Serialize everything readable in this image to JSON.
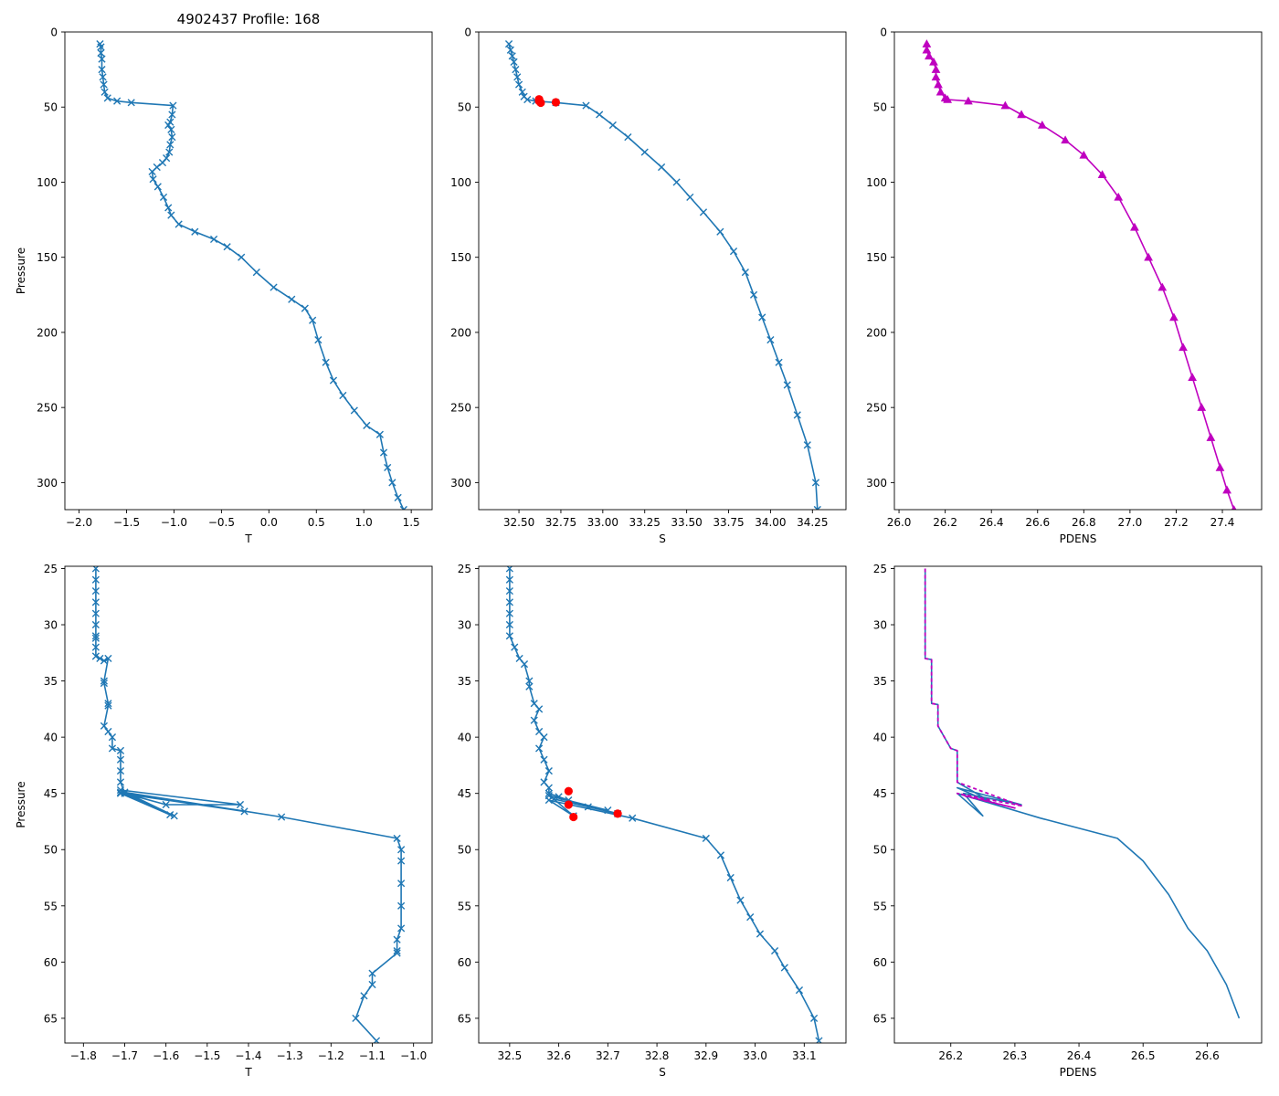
{
  "figure": {
    "title": "4902437 Profile: 168"
  },
  "colors": {
    "profile": "#1f77b4",
    "density": "#bf00bf",
    "flagged": "#ff0000"
  },
  "chart_data": [
    {
      "id": "top-t",
      "type": "line",
      "marker": "x",
      "title": "4902437 Profile: 168",
      "xlabel": "T",
      "ylabel": "Pressure",
      "xlim": [
        -2.15,
        1.72
      ],
      "ylim": [
        318,
        0
      ],
      "xticks": [
        -2.0,
        -1.5,
        -1.0,
        -0.5,
        0.0,
        0.5,
        1.0,
        1.5
      ],
      "xtick_labels": [
        "−2.0",
        "−1.5",
        "−1.0",
        "−0.5",
        "0.0",
        "0.5",
        "1.0",
        "1.5"
      ],
      "yticks": [
        0,
        50,
        100,
        150,
        200,
        250,
        300
      ],
      "ytick_labels": [
        "0",
        "50",
        "100",
        "150",
        "200",
        "250",
        "300"
      ],
      "series": [
        {
          "name": "T",
          "color": "profile",
          "x": [
            -1.78,
            -1.77,
            -1.77,
            -1.76,
            -1.76,
            -1.75,
            -1.74,
            -1.73,
            -1.7,
            -1.6,
            -1.45,
            -1.01,
            -1.02,
            -1.04,
            -1.06,
            -1.03,
            -1.02,
            -1.04,
            -1.05,
            -1.08,
            -1.12,
            -1.18,
            -1.23,
            -1.22,
            -1.17,
            -1.11,
            -1.06,
            -1.03,
            -0.95,
            -0.78,
            -0.58,
            -0.44,
            -0.29,
            -0.13,
            0.05,
            0.24,
            0.38,
            0.46,
            0.52,
            0.6,
            0.68,
            0.78,
            0.9,
            1.03,
            1.17,
            1.21,
            1.25,
            1.3,
            1.36,
            1.42
          ],
          "y": [
            8,
            10,
            14,
            18,
            25,
            30,
            35,
            40,
            44,
            46,
            47,
            49,
            55,
            60,
            62,
            65,
            70,
            75,
            80,
            84,
            87,
            90,
            93,
            98,
            103,
            110,
            117,
            122,
            128,
            133,
            138,
            143,
            150,
            160,
            170,
            178,
            184,
            192,
            205,
            220,
            232,
            242,
            252,
            262,
            268,
            280,
            290,
            300,
            310,
            318
          ]
        }
      ]
    },
    {
      "id": "top-s",
      "type": "line",
      "marker": "x",
      "xlabel": "S",
      "ylabel": "",
      "xlim": [
        32.26,
        34.45
      ],
      "ylim": [
        318,
        0
      ],
      "xticks": [
        32.5,
        32.75,
        33.0,
        33.25,
        33.5,
        33.75,
        34.0,
        34.25
      ],
      "xtick_labels": [
        "32.50",
        "32.75",
        "33.00",
        "33.25",
        "33.50",
        "33.75",
        "34.00",
        "34.25"
      ],
      "yticks": [
        0,
        50,
        100,
        150,
        200,
        250,
        300
      ],
      "ytick_labels": [
        "0",
        "50",
        "100",
        "150",
        "200",
        "250",
        "300"
      ],
      "series": [
        {
          "name": "S",
          "color": "profile",
          "x": [
            32.44,
            32.45,
            32.46,
            32.47,
            32.48,
            32.49,
            32.5,
            32.52,
            32.53,
            32.55,
            32.6,
            32.72,
            32.9,
            32.98,
            33.06,
            33.15,
            33.25,
            33.35,
            33.44,
            33.52,
            33.6,
            33.7,
            33.78,
            33.85,
            33.9,
            33.95,
            34.0,
            34.05,
            34.1,
            34.16,
            34.22,
            34.27,
            34.28
          ],
          "y": [
            8,
            12,
            16,
            20,
            25,
            30,
            35,
            40,
            43,
            45,
            46,
            47,
            49,
            55,
            62,
            70,
            80,
            90,
            100,
            110,
            120,
            133,
            146,
            160,
            175,
            190,
            205,
            220,
            235,
            255,
            275,
            300,
            318
          ]
        },
        {
          "name": "flagged",
          "color": "flagged",
          "marker": "o",
          "x": [
            32.62,
            32.62,
            32.63,
            32.72
          ],
          "y": [
            44.8,
            46.0,
            47.1,
            46.8
          ]
        }
      ]
    },
    {
      "id": "top-pdens",
      "type": "line",
      "marker": "^",
      "xlabel": "PDENS",
      "ylabel": "",
      "xlim": [
        25.98,
        27.57
      ],
      "ylim": [
        318,
        0
      ],
      "xticks": [
        26.0,
        26.2,
        26.4,
        26.6,
        26.8,
        27.0,
        27.2,
        27.4
      ],
      "xtick_labels": [
        "26.0",
        "26.2",
        "26.4",
        "26.6",
        "26.8",
        "27.0",
        "27.2",
        "27.4"
      ],
      "yticks": [
        0,
        50,
        100,
        150,
        200,
        250,
        300
      ],
      "ytick_labels": [
        "0",
        "50",
        "100",
        "150",
        "200",
        "250",
        "300"
      ],
      "series": [
        {
          "name": "PDENS",
          "color": "density",
          "x": [
            26.12,
            26.12,
            26.13,
            26.15,
            26.16,
            26.16,
            26.17,
            26.18,
            26.2,
            26.21,
            26.3,
            26.46,
            26.53,
            26.62,
            26.72,
            26.8,
            26.88,
            26.95,
            27.02,
            27.08,
            27.14,
            27.19,
            27.23,
            27.27,
            27.31,
            27.35,
            27.39,
            27.42,
            27.45
          ],
          "y": [
            8,
            12,
            16,
            20,
            25,
            30,
            35,
            40,
            44,
            45,
            46,
            49,
            55,
            62,
            72,
            82,
            95,
            110,
            130,
            150,
            170,
            190,
            210,
            230,
            250,
            270,
            290,
            305,
            318
          ]
        }
      ]
    },
    {
      "id": "bottom-t",
      "type": "line",
      "marker": "x",
      "xlabel": "T",
      "ylabel": "Pressure",
      "xlim": [
        -1.845,
        -0.955
      ],
      "ylim": [
        67.2,
        24.8
      ],
      "xticks": [
        -1.8,
        -1.7,
        -1.6,
        -1.5,
        -1.4,
        -1.3,
        -1.2,
        -1.1,
        -1.0
      ],
      "xtick_labels": [
        "−1.8",
        "−1.7",
        "−1.6",
        "−1.5",
        "−1.4",
        "−1.3",
        "−1.2",
        "−1.1",
        "−1.0"
      ],
      "yticks": [
        25,
        30,
        35,
        40,
        45,
        50,
        55,
        60,
        65
      ],
      "ytick_labels": [
        "25",
        "30",
        "35",
        "40",
        "45",
        "50",
        "55",
        "60",
        "65"
      ],
      "series": [
        {
          "name": "T",
          "color": "profile",
          "x": [
            -1.77,
            -1.77,
            -1.77,
            -1.77,
            -1.77,
            -1.77,
            -1.77,
            -1.77,
            -1.77,
            -1.77,
            -1.76,
            -1.75,
            -1.74,
            -1.75,
            -1.75,
            -1.74,
            -1.74,
            -1.75,
            -1.74,
            -1.73,
            -1.73,
            -1.71,
            -1.71,
            -1.71,
            -1.71,
            -1.7,
            -1.6,
            -1.42,
            -1.71,
            -1.58,
            -1.71,
            -1.41,
            -1.71,
            -1.59,
            -1.7,
            -1.32,
            -1.04,
            -1.03,
            -1.03,
            -1.03,
            -1.03,
            -1.03,
            -1.04,
            -1.04,
            -1.04,
            -1.1,
            -1.1,
            -1.12,
            -1.14,
            -1.09
          ],
          "y": [
            25,
            26,
            27,
            28,
            29,
            30,
            31,
            31.2,
            32,
            32.8,
            33,
            33.2,
            33,
            35,
            35.2,
            37,
            37.2,
            39,
            39.5,
            40,
            41,
            41.2,
            42,
            43,
            44,
            45,
            46,
            46,
            44.7,
            47,
            44.9,
            46.6,
            45,
            46.9,
            44.9,
            47.1,
            49,
            50,
            51,
            53,
            55,
            57,
            58,
            59,
            59.2,
            61,
            62,
            63,
            65,
            67
          ]
        }
      ]
    },
    {
      "id": "bottom-s",
      "type": "line",
      "marker": "x",
      "xlabel": "S",
      "ylabel": "",
      "xlim": [
        32.437,
        33.185
      ],
      "ylim": [
        67.2,
        24.8
      ],
      "xticks": [
        32.5,
        32.6,
        32.7,
        32.8,
        32.9,
        33.0,
        33.1
      ],
      "xtick_labels": [
        "32.5",
        "32.6",
        "32.7",
        "32.8",
        "32.9",
        "33.0",
        "33.1"
      ],
      "yticks": [
        25,
        30,
        35,
        40,
        45,
        50,
        55,
        60,
        65
      ],
      "ytick_labels": [
        "25",
        "30",
        "35",
        "40",
        "45",
        "50",
        "55",
        "60",
        "65"
      ],
      "series": [
        {
          "name": "S",
          "color": "profile",
          "x": [
            32.5,
            32.5,
            32.5,
            32.5,
            32.5,
            32.5,
            32.5,
            32.51,
            32.52,
            32.53,
            32.54,
            32.54,
            32.55,
            32.56,
            32.55,
            32.56,
            32.57,
            32.56,
            32.57,
            32.58,
            32.57,
            32.58,
            32.58,
            32.6,
            32.62,
            32.66,
            32.7,
            32.58,
            32.72,
            32.59,
            32.63,
            32.58,
            32.75,
            32.9,
            32.93,
            32.95,
            32.97,
            32.99,
            33.01,
            33.04,
            33.06,
            33.09,
            33.12,
            33.13
          ],
          "y": [
            25,
            26,
            27,
            28,
            29,
            30,
            31,
            32,
            33,
            33.5,
            35,
            35.5,
            37,
            37.5,
            38.5,
            39.5,
            40,
            41,
            42,
            43,
            44,
            44.5,
            45,
            45.3,
            45.6,
            46.2,
            46.5,
            45.2,
            46.8,
            45.5,
            47,
            45.6,
            47.2,
            49,
            50.5,
            52.5,
            54.5,
            56,
            57.5,
            59,
            60.5,
            62.5,
            65,
            67
          ]
        },
        {
          "name": "flagged",
          "color": "flagged",
          "marker": "o",
          "x": [
            32.62,
            32.62,
            32.63,
            32.72
          ],
          "y": [
            44.8,
            46.0,
            47.1,
            46.8
          ]
        }
      ]
    },
    {
      "id": "bottom-pdens",
      "type": "line",
      "marker": "none",
      "xlabel": "PDENS",
      "ylabel": "",
      "xlim": [
        26.112,
        26.685
      ],
      "ylim": [
        67.2,
        24.8
      ],
      "xticks": [
        26.2,
        26.3,
        26.4,
        26.5,
        26.6
      ],
      "xtick_labels": [
        "26.2",
        "26.3",
        "26.4",
        "26.5",
        "26.6"
      ],
      "yticks": [
        25,
        30,
        35,
        40,
        45,
        50,
        55,
        60,
        65
      ],
      "ytick_labels": [
        "25",
        "30",
        "35",
        "40",
        "45",
        "50",
        "55",
        "60",
        "65"
      ],
      "series": [
        {
          "name": "PDENS",
          "color": "profile",
          "x": [
            26.16,
            26.16,
            26.16,
            26.17,
            26.17,
            26.18,
            26.18,
            26.19,
            26.2,
            26.21,
            26.21,
            26.21,
            26.27,
            26.21,
            26.31,
            26.22,
            26.25,
            26.21,
            26.34,
            26.46,
            26.5,
            26.54,
            26.57,
            26.6,
            26.63,
            26.65
          ],
          "y": [
            25,
            31,
            33,
            33.1,
            37,
            37.1,
            39,
            40,
            41,
            41.2,
            43,
            44,
            46,
            44.5,
            46,
            45,
            47,
            45,
            47.2,
            49,
            51,
            54,
            57,
            59,
            62,
            65
          ]
        },
        {
          "name": "PDENS (dashed)",
          "color": "density",
          "dashed": true,
          "x": [
            26.16,
            26.16,
            26.16,
            26.17,
            26.17,
            26.18,
            26.18,
            26.19,
            26.2,
            26.21,
            26.21,
            26.21,
            26.31,
            26.21,
            26.3,
            26.22
          ],
          "y": [
            25,
            31,
            33,
            33.1,
            37,
            37.1,
            39,
            40,
            41,
            41.2,
            43,
            44,
            46.1,
            45,
            46.3,
            45.2
          ]
        }
      ]
    }
  ]
}
